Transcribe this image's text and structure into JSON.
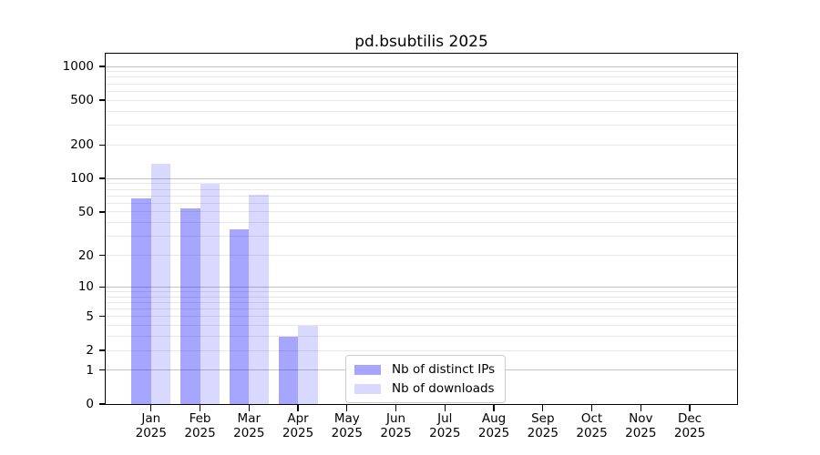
{
  "figure": {
    "title": "pd.bsubtilis 2025",
    "background": "#ffffff"
  },
  "legend": {
    "items": [
      {
        "label": "Nb of distinct IPs"
      },
      {
        "label": "Nb of downloads"
      }
    ]
  },
  "chart_data": {
    "type": "bar",
    "title": "pd.bsubtilis 2025",
    "categories": [
      "Jan",
      "Feb",
      "Mar",
      "Apr",
      "May",
      "Jun",
      "Jul",
      "Aug",
      "Sep",
      "Oct",
      "Nov",
      "Dec"
    ],
    "year_label": "2025",
    "series": [
      {
        "name": "Nb of distinct IPs",
        "color": "#0000ff",
        "alpha": 0.35,
        "rendered_color": "#a6a6ff",
        "values": [
          66,
          54,
          35,
          3,
          0,
          0,
          0,
          0,
          0,
          0,
          0,
          0
        ]
      },
      {
        "name": "Nb of downloads",
        "color": "#0000ff",
        "alpha": 0.15,
        "rendered_color": "#d9d9ff",
        "values": [
          135,
          90,
          72,
          4,
          0,
          0,
          0,
          0,
          0,
          0,
          0,
          0
        ]
      }
    ],
    "yscale": "log1p",
    "yticks": [
      0,
      1,
      2,
      5,
      10,
      20,
      50,
      100,
      200,
      500,
      1000
    ],
    "ylim": [
      0,
      1300
    ],
    "grid": "both",
    "legend_position": "lower center inside axes"
  },
  "colors": {
    "grid_major": "#c3c3c3",
    "grid_minor": "#e8e8e8",
    "axis": "#000000",
    "text": "#000000",
    "legend_border": "#cccccc"
  }
}
